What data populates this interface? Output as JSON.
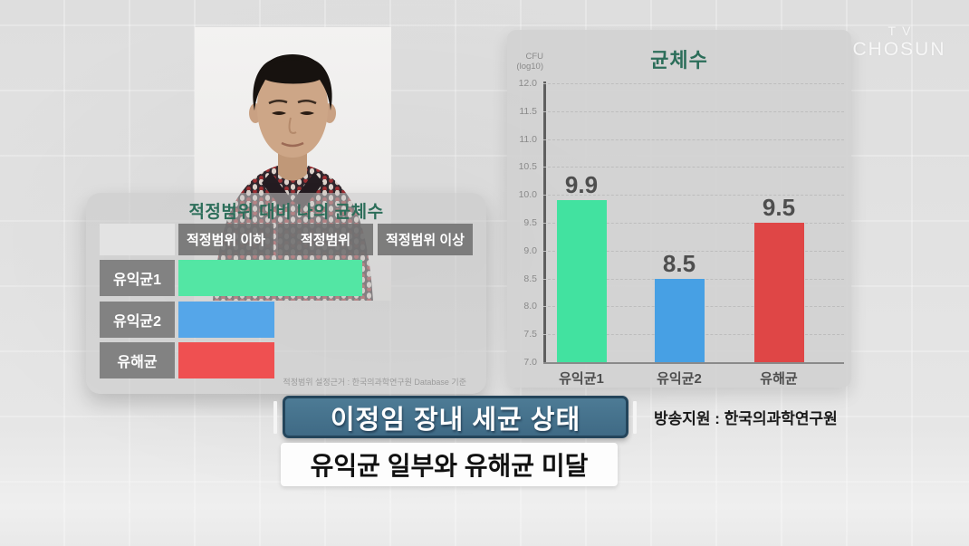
{
  "watermark": {
    "line1": "TV",
    "line2": "CHOSUN"
  },
  "left_panel": {
    "title": "적정범위 대비 나의 균체수",
    "columns": [
      "적정범위 이하",
      "적정범위",
      "적정범위 이상"
    ],
    "rows": [
      {
        "label": "유익균1",
        "color": "#53e6a4",
        "width_pct": 62.5
      },
      {
        "label": "유익균2",
        "color": "#55a6e9",
        "width_pct": 32.5
      },
      {
        "label": "유해균",
        "color": "#ef5051",
        "width_pct": 32.5
      }
    ],
    "footnote": "적정범위 설정근거 : 한국의과학연구원 Database 기준"
  },
  "chart_data": {
    "type": "bar",
    "title": "균체수",
    "y_unit_line1": "CFU",
    "y_unit_line2": "(log10)",
    "categories": [
      "유익균1",
      "유익균2",
      "유해균"
    ],
    "values": [
      9.9,
      8.5,
      9.5
    ],
    "colors": [
      "#42e2a0",
      "#47a0e4",
      "#df4646"
    ],
    "ylim": [
      7.0,
      12.0
    ],
    "ytick_step": 0.5,
    "grid": "dashed-horizontal",
    "legend": "none"
  },
  "caption_box": {
    "text": "이정임 장내 세균 상태"
  },
  "subtitle": {
    "text": "유익균 일부와 유해균 미달"
  },
  "credit": {
    "text": "방송지원 : 한국의과학연구원"
  }
}
